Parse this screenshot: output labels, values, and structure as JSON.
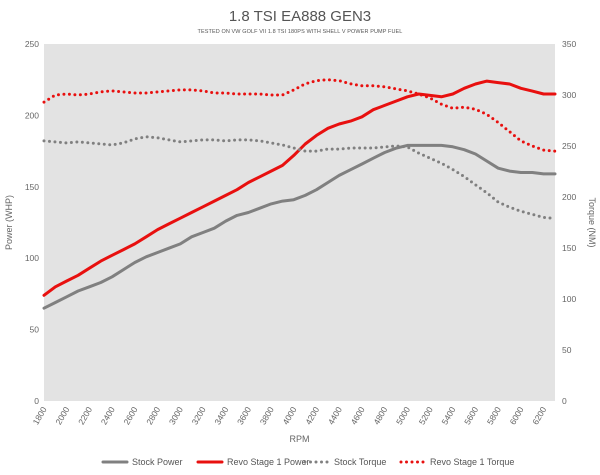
{
  "chart_data": {
    "type": "line",
    "title": "1.8 TSI EA888 GEN3",
    "subtitle": "TESTED ON VW GOLF VII 1.8 TSI 180PS WITH SHELL V POWER PUMP FUEL",
    "xlabel": "RPM",
    "ylabel_left": "Power (WHP)",
    "ylabel_right": "Torque (NM)",
    "ylim_left": [
      0,
      250
    ],
    "ylim_right": [
      0,
      350
    ],
    "xlim": [
      1800,
      6300
    ],
    "yticks_left": [
      "0",
      "50",
      "100",
      "150",
      "200",
      "250"
    ],
    "yticks_right": [
      "0",
      "50",
      "100",
      "150",
      "200",
      "250",
      "300",
      "350"
    ],
    "xticks": [
      "1800",
      "2000",
      "2200",
      "2400",
      "2600",
      "2800",
      "3000",
      "3200",
      "3400",
      "3600",
      "3800",
      "4000",
      "4200",
      "4400",
      "4600",
      "4800",
      "5000",
      "5200",
      "5400",
      "5600",
      "5800",
      "6000",
      "6200"
    ],
    "grid": false,
    "background": "#e3e3e3",
    "legend_position": "bottom",
    "x": [
      1800,
      1900,
      2000,
      2100,
      2200,
      2300,
      2400,
      2500,
      2600,
      2700,
      2800,
      2900,
      3000,
      3100,
      3200,
      3300,
      3400,
      3500,
      3600,
      3700,
      3800,
      3900,
      4000,
      4100,
      4200,
      4300,
      4400,
      4500,
      4600,
      4700,
      4800,
      4900,
      5000,
      5100,
      5200,
      5300,
      5400,
      5500,
      5600,
      5700,
      5800,
      5900,
      6000,
      6100,
      6200,
      6300
    ],
    "series": [
      {
        "name": "Stock Power",
        "axis": "left",
        "color": "#808080",
        "style": "solid",
        "values": [
          65,
          69,
          73,
          77,
          80,
          83,
          87,
          92,
          97,
          101,
          104,
          107,
          110,
          115,
          118,
          121,
          126,
          130,
          132,
          135,
          138,
          140,
          141,
          144,
          148,
          153,
          158,
          162,
          166,
          170,
          174,
          177,
          179,
          179,
          179,
          179,
          178,
          176,
          173,
          168,
          163,
          161,
          160,
          160,
          159,
          159
        ]
      },
      {
        "name": "Revo Stage 1 Power",
        "axis": "left",
        "color": "#e8100f",
        "style": "solid",
        "values": [
          74,
          80,
          84,
          88,
          93,
          98,
          102,
          106,
          110,
          115,
          120,
          124,
          128,
          132,
          136,
          140,
          144,
          148,
          153,
          157,
          161,
          165,
          172,
          180,
          186,
          191,
          194,
          196,
          199,
          204,
          207,
          210,
          213,
          215,
          214,
          213,
          215,
          219,
          222,
          224,
          223,
          222,
          219,
          217,
          215,
          215
        ]
      },
      {
        "name": "Stock Torque",
        "axis": "right",
        "color": "#808080",
        "style": "dotted",
        "values": [
          255,
          254,
          253,
          254,
          253,
          252,
          251,
          253,
          257,
          259,
          258,
          256,
          254,
          255,
          256,
          256,
          255,
          256,
          256,
          255,
          253,
          251,
          248,
          245,
          245,
          247,
          247,
          248,
          248,
          248,
          249,
          250,
          249,
          243,
          238,
          233,
          227,
          220,
          212,
          204,
          195,
          190,
          186,
          183,
          180,
          179
        ]
      },
      {
        "name": "Revo Stage 1 Torque",
        "axis": "right",
        "color": "#e8100f",
        "style": "dotted",
        "values": [
          293,
          300,
          301,
          300,
          301,
          303,
          304,
          303,
          302,
          302,
          303,
          304,
          305,
          305,
          304,
          302,
          302,
          301,
          301,
          301,
          300,
          300,
          305,
          311,
          314,
          315,
          314,
          311,
          309,
          309,
          308,
          306,
          304,
          301,
          297,
          291,
          287,
          288,
          286,
          281,
          273,
          264,
          255,
          250,
          246,
          245
        ]
      }
    ]
  }
}
